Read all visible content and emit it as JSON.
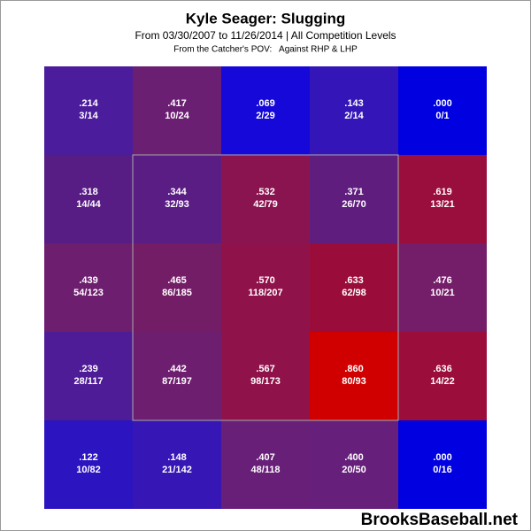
{
  "chart_data": {
    "type": "heatmap",
    "title": "Kyle Seager: Slugging",
    "subtitle": "From 03/30/2007 to 11/26/2014 | All Competition Levels",
    "note": "From the Catcher's POV:   Against RHP & LHP",
    "watermark": "BrooksBaseball.net",
    "values": [
      [
        0.214,
        0.417,
        0.069,
        0.143,
        0.0
      ],
      [
        0.318,
        0.344,
        0.532,
        0.371,
        0.619
      ],
      [
        0.439,
        0.465,
        0.57,
        0.633,
        0.476
      ],
      [
        0.239,
        0.442,
        0.567,
        0.86,
        0.636
      ],
      [
        0.122,
        0.148,
        0.407,
        0.4,
        0.0
      ]
    ],
    "value_labels": [
      [
        ".214",
        ".417",
        ".069",
        ".143",
        ".000"
      ],
      [
        ".318",
        ".344",
        ".532",
        ".371",
        ".619"
      ],
      [
        ".439",
        ".465",
        ".570",
        ".633",
        ".476"
      ],
      [
        ".239",
        ".442",
        ".567",
        ".860",
        ".636"
      ],
      [
        ".122",
        ".148",
        ".407",
        ".400",
        ".000"
      ]
    ],
    "counts": [
      [
        "3/14",
        "10/24",
        "2/29",
        "2/14",
        "0/1"
      ],
      [
        "14/44",
        "32/93",
        "42/79",
        "26/70",
        "13/21"
      ],
      [
        "54/123",
        "86/185",
        "118/207",
        "62/98",
        "10/21"
      ],
      [
        "28/117",
        "87/197",
        "98/173",
        "80/93",
        "14/22"
      ],
      [
        "10/82",
        "21/142",
        "48/118",
        "20/50",
        "0/16"
      ]
    ],
    "colors": [
      [
        "#4b1c9b",
        "#6b1f72",
        "#1508d8",
        "#3315b8",
        "#0000e0"
      ],
      [
        "#581d85",
        "#5a1d84",
        "#8a1450",
        "#5f1d7e",
        "#990e3c"
      ],
      [
        "#6d1e6e",
        "#741d67",
        "#90124a",
        "#9a0d3a",
        "#741d68"
      ],
      [
        "#4e1c97",
        "#6e1e6e",
        "#90124a",
        "#d00000",
        "#9b0d3a"
      ],
      [
        "#2c14c0",
        "#3616b4",
        "#681f78",
        "#661f7a",
        "#0000e0"
      ]
    ]
  }
}
